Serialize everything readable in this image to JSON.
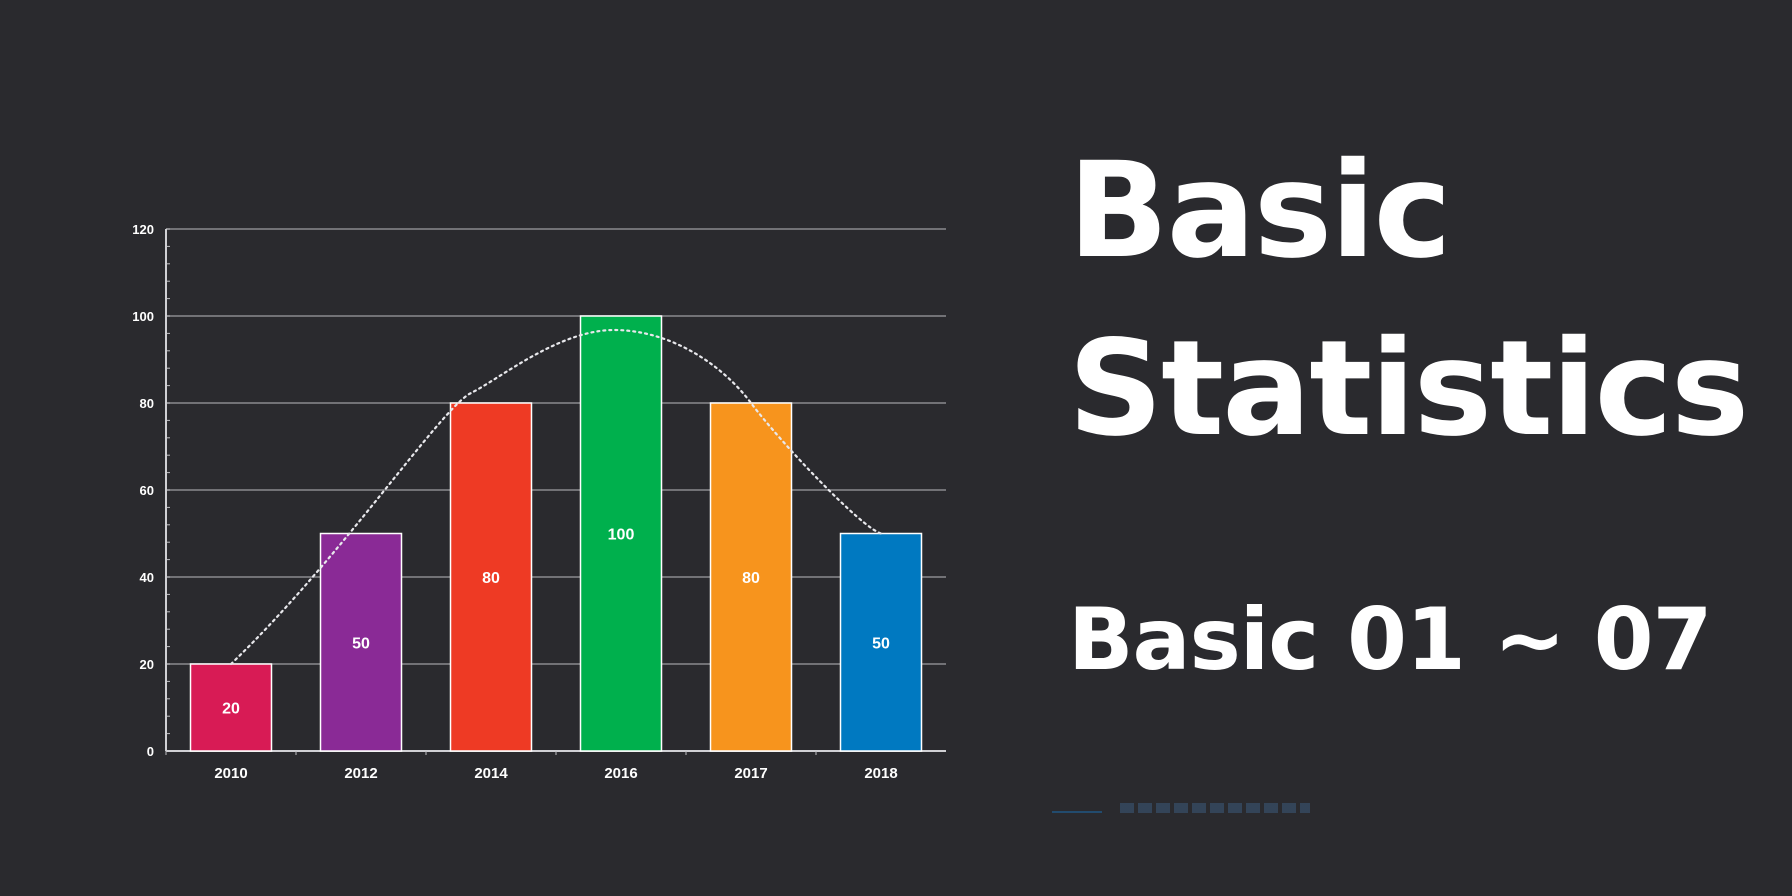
{
  "title": {
    "line1": "Basic",
    "line2": "Statistics",
    "subtitle": "Basic 01 ~ 07"
  },
  "chart_data": {
    "type": "bar",
    "categories": [
      "2010",
      "2012",
      "2014",
      "2016",
      "2017",
      "2018"
    ],
    "values": [
      20,
      50,
      80,
      100,
      80,
      50
    ],
    "data_labels": [
      "20",
      "50",
      "80",
      "100",
      "80",
      "50"
    ],
    "colors": [
      "#d81b55",
      "#8a2a96",
      "#ee3a24",
      "#00b04d",
      "#f7941d",
      "#0079c1"
    ],
    "ylim": [
      0,
      120
    ],
    "yticks": [
      0,
      20,
      40,
      60,
      80,
      100,
      120
    ],
    "ytick_labels": [
      "0",
      "20",
      "40",
      "60",
      "80",
      "100",
      "120"
    ],
    "grid": true,
    "overlay": "dotted bell curve through bar tops",
    "title": "",
    "xlabel": "",
    "ylabel": ""
  }
}
